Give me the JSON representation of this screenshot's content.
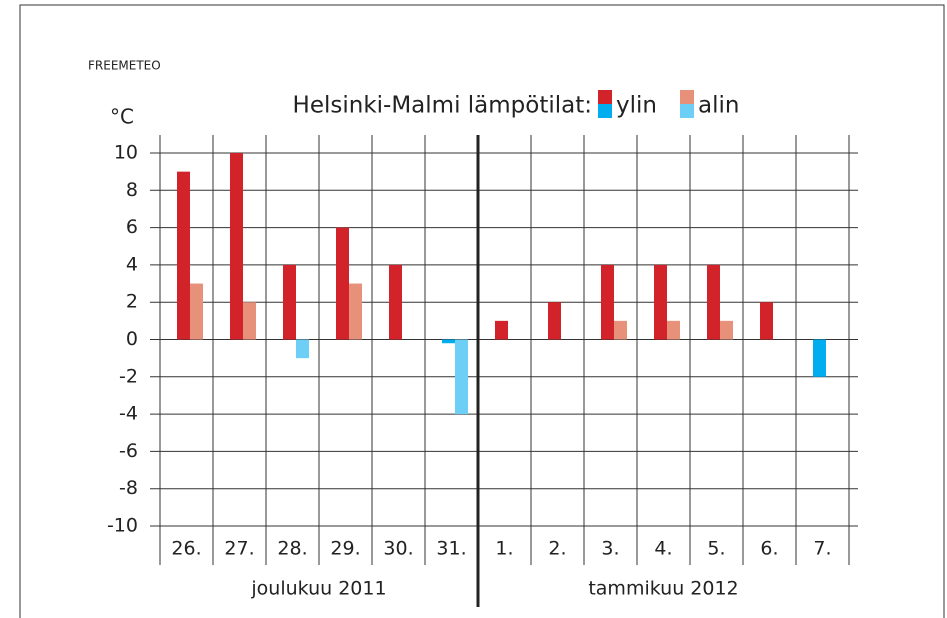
{
  "chart_data": {
    "type": "bar",
    "source": "FREEMETEO",
    "title": "Helsinki-Malmi lämpötilat:",
    "y_label": "°C",
    "categories": [
      "26.",
      "27.",
      "28.",
      "29.",
      "30.",
      "31.",
      "1.",
      "2.",
      "3.",
      "4.",
      "5.",
      "6.",
      "7."
    ],
    "groups": [
      "joulukuu 2011",
      "tammikuu 2012"
    ],
    "series": [
      {
        "name": "ylin",
        "color": "#d2232a",
        "negative_color": "#00aeef",
        "values": [
          9,
          10,
          4,
          6,
          4,
          -0.2,
          1,
          2,
          4,
          4,
          4,
          2,
          -2
        ]
      },
      {
        "name": "alin",
        "color": "#e8917a",
        "negative_color": "#6dcff6",
        "values": [
          3,
          2,
          -1,
          3,
          null,
          -4,
          null,
          null,
          1,
          1,
          1,
          null,
          null
        ]
      }
    ],
    "ylim": [
      -10,
      10
    ],
    "yticks": [
      -10,
      -8,
      -6,
      -4,
      -2,
      0,
      2,
      4,
      6,
      8,
      10
    ],
    "grid": true
  }
}
